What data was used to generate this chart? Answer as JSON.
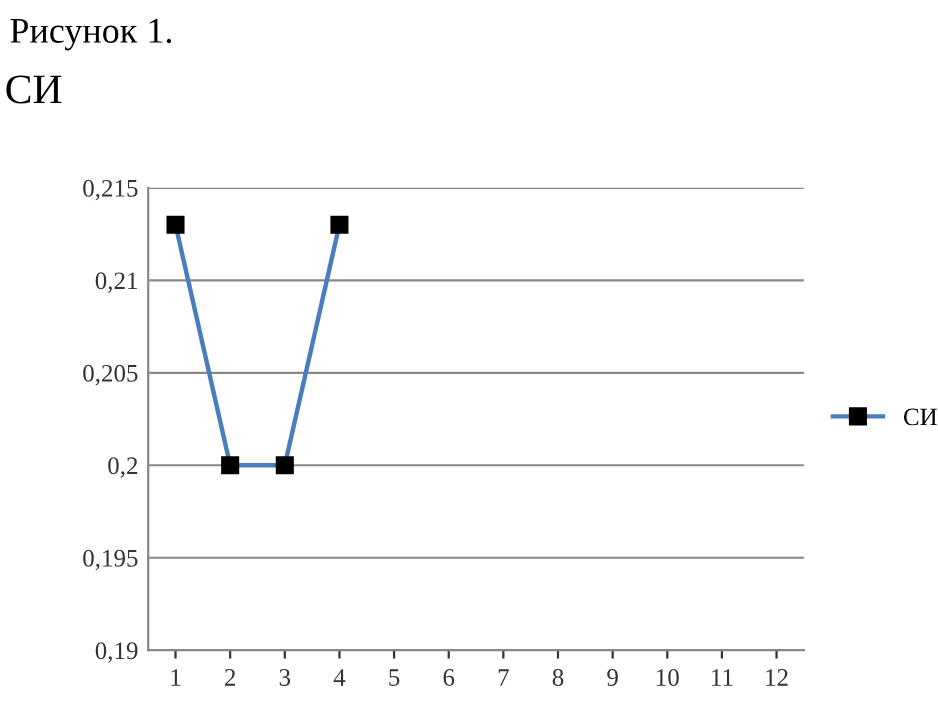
{
  "chart_data": {
    "type": "line",
    "title": "Рисунок 1.",
    "subtitle": "СИ",
    "categories": [
      "1",
      "2",
      "3",
      "4",
      "5",
      "6",
      "7",
      "8",
      "9",
      "10",
      "11",
      "12"
    ],
    "series": [
      {
        "name": "СИ",
        "color": "#4a7ebb",
        "values": [
          0.213,
          0.2,
          0.2,
          0.213,
          null,
          null,
          null,
          null,
          null,
          null,
          null,
          null
        ]
      }
    ],
    "ylim": [
      0.19,
      0.215
    ],
    "yticks": [
      {
        "value": 0.19,
        "label": "0,19"
      },
      {
        "value": 0.195,
        "label": "0,195"
      },
      {
        "value": 0.2,
        "label": "0,2"
      },
      {
        "value": 0.205,
        "label": "0,205"
      },
      {
        "value": 0.21,
        "label": "0,21"
      },
      {
        "value": 0.215,
        "label": "0,215"
      }
    ],
    "grid": "y",
    "legend": "right",
    "marker": "square",
    "line_style": "solid"
  }
}
